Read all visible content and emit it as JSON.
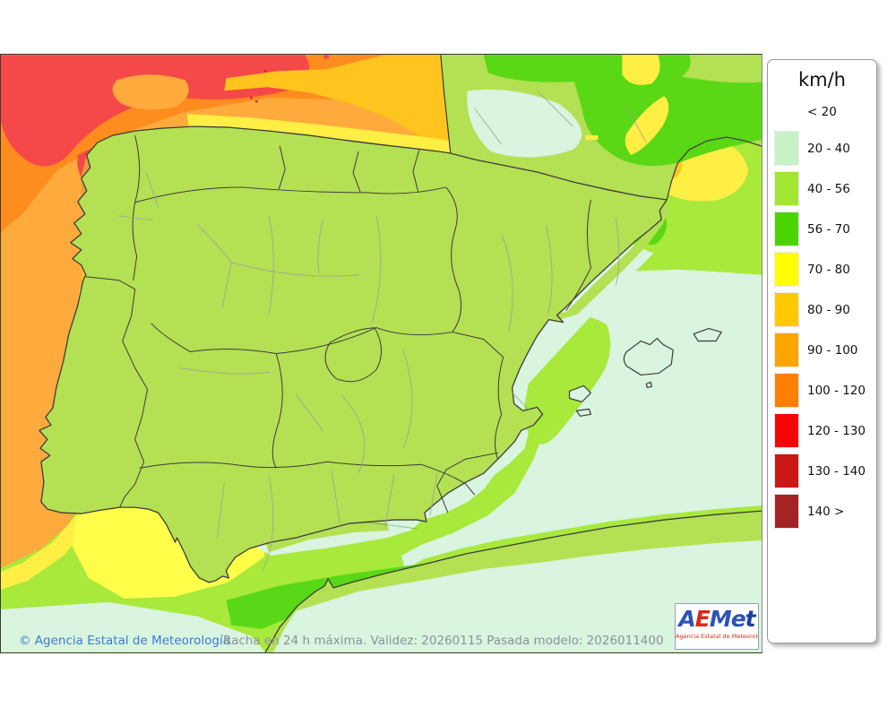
{
  "legend": {
    "title": "km/h",
    "entries": [
      {
        "label": "< 20",
        "color": null
      },
      {
        "label": "20 - 40",
        "color": "#c6f2c6"
      },
      {
        "label": "40 - 56",
        "color": "#a0e632"
      },
      {
        "label": "56 - 70",
        "color": "#4ad400"
      },
      {
        "label": "70 - 80",
        "color": "#ffff00"
      },
      {
        "label": "80 - 90",
        "color": "#ffc800"
      },
      {
        "label": "90 - 100",
        "color": "#ffa500"
      },
      {
        "label": "100 - 120",
        "color": "#ff7f00"
      },
      {
        "label": "120 - 130",
        "color": "#f50505"
      },
      {
        "label": "130 - 140",
        "color": "#cc1717"
      },
      {
        "label": "140 >",
        "color": "#a52323"
      }
    ]
  },
  "footer": {
    "copyright": "© Agencia Estatal de Meteorología",
    "caption": "Racha en 24 h máxima. Validez: 20260115 Pasada modelo: 2026011400"
  },
  "logo": {
    "letters": [
      {
        "ch": "A",
        "color": "#2d53b5"
      },
      {
        "ch": "E",
        "color": "#d8281e"
      },
      {
        "ch": "M",
        "color": "#2d53b5"
      },
      {
        "ch": "e",
        "color": "#2d53b5"
      },
      {
        "ch": "t",
        "color": "#1d3f9e"
      }
    ],
    "subtitle": "Agencia Estatal de Meteorología"
  },
  "map": {
    "variable": "Racha en 24 h máxima",
    "units": "km/h",
    "palette": {
      "sea_low": "#a8e93c",
      "land_low": "#b4e053",
      "calm": "#e9e2ea",
      "mint": "#d9f4df",
      "green": "#5ad715",
      "yellow": "#ffee44",
      "gold": "#ffc41e",
      "orange": "#ffaa3c",
      "deep_orange": "#ff8c1e",
      "red": "#f54848",
      "dark_red": "#c03030"
    }
  }
}
